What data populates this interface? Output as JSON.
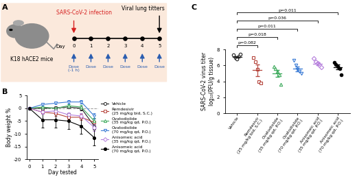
{
  "diagram": {
    "label": "A",
    "subject": "K18 hACE2 mice",
    "infection": "SARS-CoV-2 infection",
    "endpoint": "Viral lung titters",
    "axis_label": "Day",
    "days": [
      0,
      1,
      2,
      3,
      4,
      5
    ],
    "doses": [
      "Dose\n(-1 h)",
      "Dose",
      "Dose",
      "Dose",
      "Dose",
      "Dose"
    ]
  },
  "chart_data": [
    {
      "type": "line",
      "panel": "B",
      "x_label": "Day tested",
      "y_label": "Body weight %",
      "x": [
        0,
        1,
        2,
        3,
        4,
        5
      ],
      "xlim": [
        -0.2,
        5.3
      ],
      "xticks": [
        0,
        1,
        2,
        3,
        4,
        5
      ],
      "ylim": [
        -20,
        5
      ],
      "yticks": [
        -20,
        -15,
        -10,
        -5,
        0,
        5
      ],
      "reference_y": 0,
      "legend": "center left",
      "series": [
        {
          "name": "Vehicle",
          "color": "#222222",
          "marker": "open_circle",
          "values": [
            0,
            0,
            0.2,
            0.5,
            0,
            -7
          ],
          "errors": [
            0,
            0.5,
            0.6,
            0.6,
            0.8,
            1.2
          ]
        },
        {
          "name": "Remdesivir\n(25 mg/kg bid, S.C.)",
          "color": "#b5443b",
          "marker": "open_square",
          "values": [
            0,
            -1.5,
            -2,
            -3.5,
            -3.5,
            -5.5
          ],
          "errors": [
            0,
            0.8,
            1,
            1,
            1.2,
            1.5
          ]
        },
        {
          "name": "Ovatodiolide\n(35 mg/kg qd, P.O.)",
          "color": "#3daa5c",
          "marker": "open_triangle_up",
          "values": [
            0,
            0.5,
            0,
            1,
            0.5,
            -5
          ],
          "errors": [
            0,
            0.5,
            0.6,
            0.7,
            0.8,
            1.2
          ]
        },
        {
          "name": "Ovatodiolide\n(70 mg/kg qd, P.O.)",
          "color": "#3a7bd5",
          "marker": "open_triangle_down",
          "values": [
            0,
            1.5,
            2,
            2.5,
            2.5,
            -3
          ],
          "errors": [
            0,
            0.5,
            0.5,
            0.6,
            0.6,
            1.2
          ]
        },
        {
          "name": "Anisomeic acid\n(35 mg/kg qd, P.O.)",
          "color": "#b57edc",
          "marker": "open_diamond",
          "values": [
            0,
            -1.5,
            -1,
            -2.5,
            -3,
            -7.5
          ],
          "errors": [
            0,
            0.7,
            0.8,
            0.9,
            1,
            1.3
          ]
        },
        {
          "name": "Anisomeic acid\n(70 mg/kg qd, P.O.)",
          "color": "#000000",
          "marker": "circle",
          "values": [
            0,
            -4.5,
            -4.5,
            -5,
            -7,
            -11.5
          ],
          "errors": [
            0,
            3,
            3,
            3,
            3,
            3
          ]
        }
      ]
    },
    {
      "type": "scatter",
      "panel": "C",
      "y_label": "SARS-CoV-2 virus titer\nlog₁₀(PFU/g tissue)",
      "categories": [
        "Vehicle",
        "Remdesivir\n(25 mg/kg bid, S.C.)",
        "Ovatodiolide\n(35 mg/kg qd, P.O.)",
        "Ovatodiolide\n(70 mg/kg qd, P.O.)",
        "Anisomeic acid\n(35 mg/kg qd, P.O.)",
        "Anisomeic acid\n(70 mg/kg qd, P.O.)"
      ],
      "colors": [
        "#222222",
        "#b5443b",
        "#3daa5c",
        "#3a7bd5",
        "#b57edc",
        "#000000"
      ],
      "markers": [
        "open_circle",
        "open_square",
        "open_triangle_up",
        "open_triangle_down",
        "open_diamond",
        "circle"
      ],
      "points": [
        [
          7.3,
          7.0,
          6.8,
          7.2,
          7.4
        ],
        [
          7.0,
          6.5,
          5.5,
          4.0,
          3.8
        ],
        [
          5.9,
          5.6,
          5.3,
          4.8,
          3.6
        ],
        [
          6.6,
          6.0,
          5.5,
          5.3,
          5.0
        ],
        [
          6.9,
          6.5,
          6.3,
          6.0,
          5.8
        ],
        [
          6.4,
          6.1,
          5.9,
          5.6,
          4.8
        ]
      ],
      "means": [
        7.1,
        5.4,
        5.0,
        5.6,
        6.2,
        5.8
      ],
      "errors": [
        0.1,
        0.7,
        0.4,
        0.3,
        0.2,
        0.3
      ],
      "ylim": [
        0,
        8
      ],
      "yticks": [
        0,
        2,
        4,
        6,
        8
      ],
      "reference": "Vehicle",
      "comparisons": [
        {
          "vs": "Remdesivir\n(25 mg/kg bid, S.C.)",
          "label": "p=0.082"
        },
        {
          "vs": "Ovatodiolide\n(35 mg/kg qd, P.O.)",
          "label": "p=0.018"
        },
        {
          "vs": "Ovatodiolide\n(70 mg/kg qd, P.O.)",
          "label": "p=0.011"
        },
        {
          "vs": "Anisomeic acid\n(35 mg/kg qd, P.O.)",
          "label": "p=0.036"
        },
        {
          "vs": "Anisomeic acid\n(70 mg/kg qd, P.O.)",
          "label": "p=0.011"
        }
      ]
    }
  ]
}
